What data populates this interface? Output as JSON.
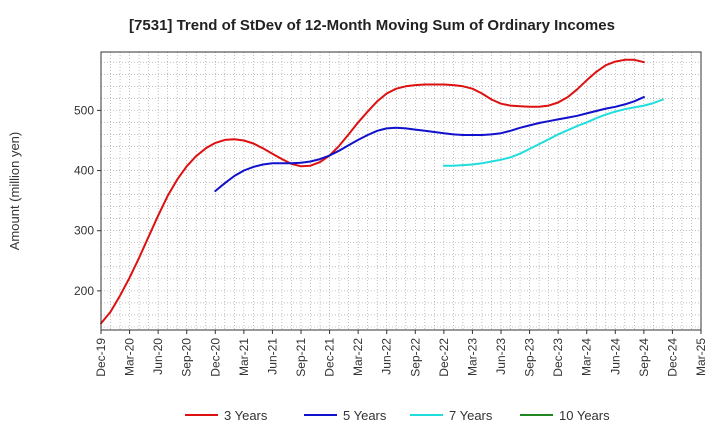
{
  "chart_data": {
    "type": "line",
    "title": "[7531]  Trend of StDev of 12-Month Moving Sum of Ordinary Incomes",
    "xlabel": "",
    "ylabel": "Amount (million yen)",
    "ylim": [
      135,
      597
    ],
    "yticks": [
      200,
      300,
      400,
      500
    ],
    "grid": true,
    "legend_position": "bottom",
    "x_ticks": [
      "Dec-19",
      "Mar-20",
      "Jun-20",
      "Sep-20",
      "Dec-20",
      "Mar-21",
      "Jun-21",
      "Sep-21",
      "Dec-21",
      "Mar-22",
      "Jun-22",
      "Sep-22",
      "Dec-22",
      "Mar-23",
      "Jun-23",
      "Sep-23",
      "Dec-23",
      "Mar-24",
      "Jun-24",
      "Sep-24",
      "Dec-24",
      "Mar-25"
    ],
    "x_start": "Dec-19",
    "x_months_total": 63,
    "series": [
      {
        "name": "3 Years",
        "color": "#dd1111",
        "start_offset": 0,
        "values": [
          146,
          165,
          192,
          222,
          255,
          290,
          325,
          358,
          385,
          407,
          424,
          437,
          446,
          451,
          452,
          450,
          445,
          437,
          428,
          419,
          411,
          407,
          408,
          414,
          425,
          441,
          460,
          480,
          498,
          515,
          528,
          536,
          540,
          542,
          543,
          543,
          543,
          542,
          540,
          536,
          528,
          518,
          511,
          508,
          507,
          506,
          506,
          508,
          513,
          522,
          535,
          550,
          564,
          575,
          581,
          584,
          584,
          580
        ]
      },
      {
        "name": "5 Years",
        "color": "#1111cc",
        "start_offset": 12,
        "values": [
          366,
          379,
          391,
          400,
          406,
          410,
          412,
          412,
          412,
          413,
          415,
          419,
          425,
          433,
          442,
          451,
          459,
          466,
          470,
          471,
          470,
          468,
          466,
          464,
          462,
          460,
          459,
          459,
          459,
          460,
          462,
          466,
          471,
          475,
          479,
          482,
          485,
          488,
          491,
          495,
          499,
          503,
          506,
          510,
          515,
          522
        ]
      },
      {
        "name": "7 Years",
        "color": "#22dddd",
        "start_offset": 36,
        "values": [
          408,
          408,
          409,
          410,
          412,
          415,
          418,
          422,
          428,
          436,
          444,
          452,
          460,
          467,
          474,
          480,
          487,
          493,
          498,
          502,
          505,
          508,
          512,
          518
        ]
      },
      {
        "name": "10 Years",
        "color": "#228822",
        "start_offset": 0,
        "values": []
      }
    ]
  }
}
